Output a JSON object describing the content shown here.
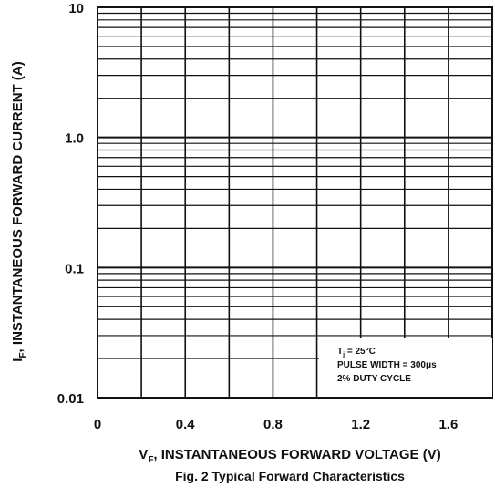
{
  "chart_data": {
    "type": "line",
    "title": "Fig. 2 Typical Forward Characteristics",
    "xlabel_main": "V",
    "xlabel_sub": "F",
    "xlabel_rest": ", INSTANTANEOUS FORWARD VOLTAGE (V)",
    "ylabel_main": "I",
    "ylabel_sub": "F",
    "ylabel_rest": ", INSTANTANEOUS FORWARD CURRENT (A)",
    "x_range": [
      0,
      1.8
    ],
    "y_range": [
      0.01,
      10
    ],
    "y_scale": "log",
    "x_ticks": [
      {
        "value": 0,
        "label": "0"
      },
      {
        "value": 0.4,
        "label": "0.4"
      },
      {
        "value": 0.8,
        "label": "0.8"
      },
      {
        "value": 1.2,
        "label": "1.2"
      },
      {
        "value": 1.6,
        "label": "1.6"
      }
    ],
    "x_gridlines": [
      0,
      0.2,
      0.4,
      0.6,
      0.8,
      1.0,
      1.2,
      1.4,
      1.6,
      1.8
    ],
    "y_ticks": [
      {
        "value": 10,
        "label": "10"
      },
      {
        "value": 1,
        "label": "1.0"
      },
      {
        "value": 0.1,
        "label": "0.1"
      },
      {
        "value": 0.01,
        "label": "0.01"
      }
    ],
    "grid": true,
    "series": [],
    "annotation": {
      "line1_main": "T",
      "line1_sub": "j",
      "line1_rest": " = 25°C",
      "line2": "PULSE WIDTH = 300μs",
      "line3": "2% DUTY CYCLE",
      "placement": "bottom-right"
    }
  }
}
